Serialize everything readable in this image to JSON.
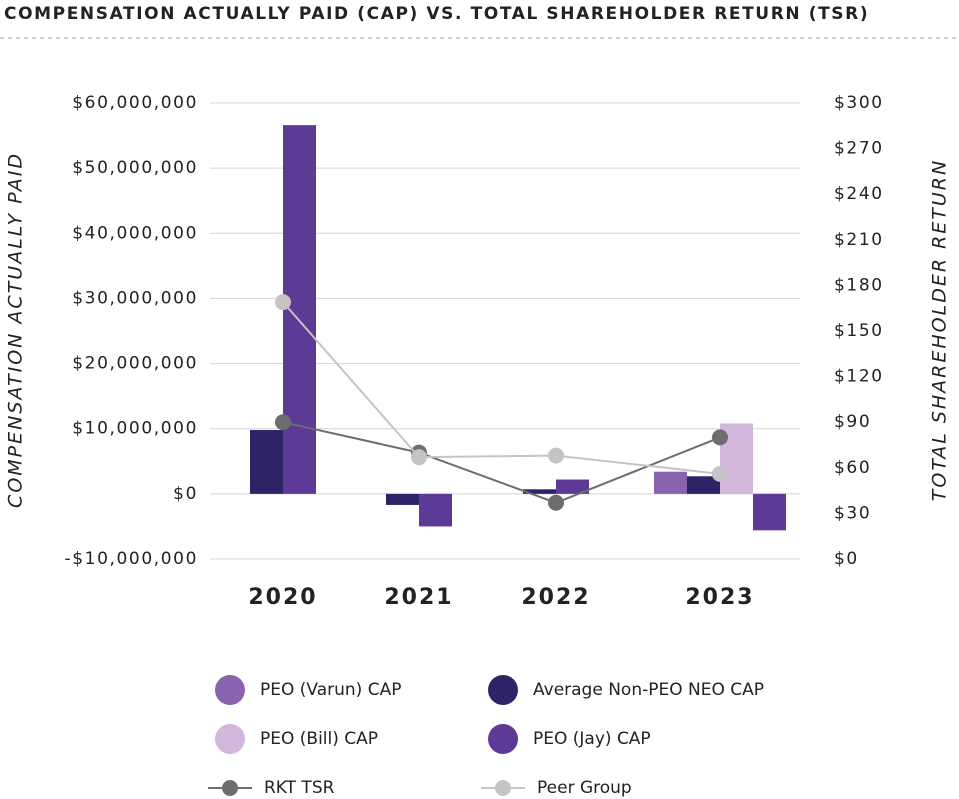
{
  "chart_data": {
    "type": "bar",
    "title": "COMPENSATION ACTUALLY PAID (CAP) VS. TOTAL SHAREHOLDER RETURN (TSR)",
    "y_label": "COMPENSATION ACTUALLY PAID",
    "y2_label": "TOTAL SHAREHOLDER RETURN",
    "categories": [
      "2020",
      "2021",
      "2022",
      "2023"
    ],
    "ylim": [
      -10000000,
      60000000
    ],
    "yticks": [
      {
        "value": -10000000,
        "label": "-$10,000,000"
      },
      {
        "value": 0,
        "label": "$0"
      },
      {
        "value": 10000000,
        "label": "$10,000,000"
      },
      {
        "value": 20000000,
        "label": "$20,000,000"
      },
      {
        "value": 30000000,
        "label": "$30,000,000"
      },
      {
        "value": 40000000,
        "label": "$40,000,000"
      },
      {
        "value": 50000000,
        "label": "$50,000,000"
      },
      {
        "value": 60000000,
        "label": "$60,000,000"
      }
    ],
    "y2lim": [
      0,
      300
    ],
    "y2ticks": [
      {
        "value": 0,
        "label": "$0"
      },
      {
        "value": 30,
        "label": "$30"
      },
      {
        "value": 60,
        "label": "$60"
      },
      {
        "value": 90,
        "label": "$90"
      },
      {
        "value": 120,
        "label": "$120"
      },
      {
        "value": 150,
        "label": "$150"
      },
      {
        "value": 180,
        "label": "$180"
      },
      {
        "value": 210,
        "label": "$210"
      },
      {
        "value": 240,
        "label": "$240"
      },
      {
        "value": 270,
        "label": "$270"
      },
      {
        "value": 300,
        "label": "$300"
      }
    ],
    "grid": true,
    "series": [
      {
        "name": "PEO (Varun) CAP",
        "color": "#8a63b0",
        "values": [
          null,
          null,
          null,
          3400000
        ]
      },
      {
        "name": "Average Non-PEO NEO CAP",
        "color": "#2e2366",
        "values": [
          9800000,
          -1700000,
          700000,
          2700000
        ]
      },
      {
        "name": "PEO (Bill) CAP",
        "color": "#d2b6dc",
        "values": [
          null,
          null,
          null,
          10800000
        ]
      },
      {
        "name": "PEO (Jay) CAP",
        "color": "#5e3a97",
        "values": [
          56600000,
          -5000000,
          2200000,
          -5600000
        ]
      },
      {
        "name": "RKT TSR",
        "type": "line",
        "axis": "y2",
        "color": "#6d6d6d",
        "values": [
          90,
          70,
          37,
          80
        ]
      },
      {
        "name": "Peer Group",
        "type": "line",
        "axis": "y2",
        "color": "#c4c4c4",
        "values": [
          169,
          67,
          68,
          56
        ]
      }
    ]
  }
}
